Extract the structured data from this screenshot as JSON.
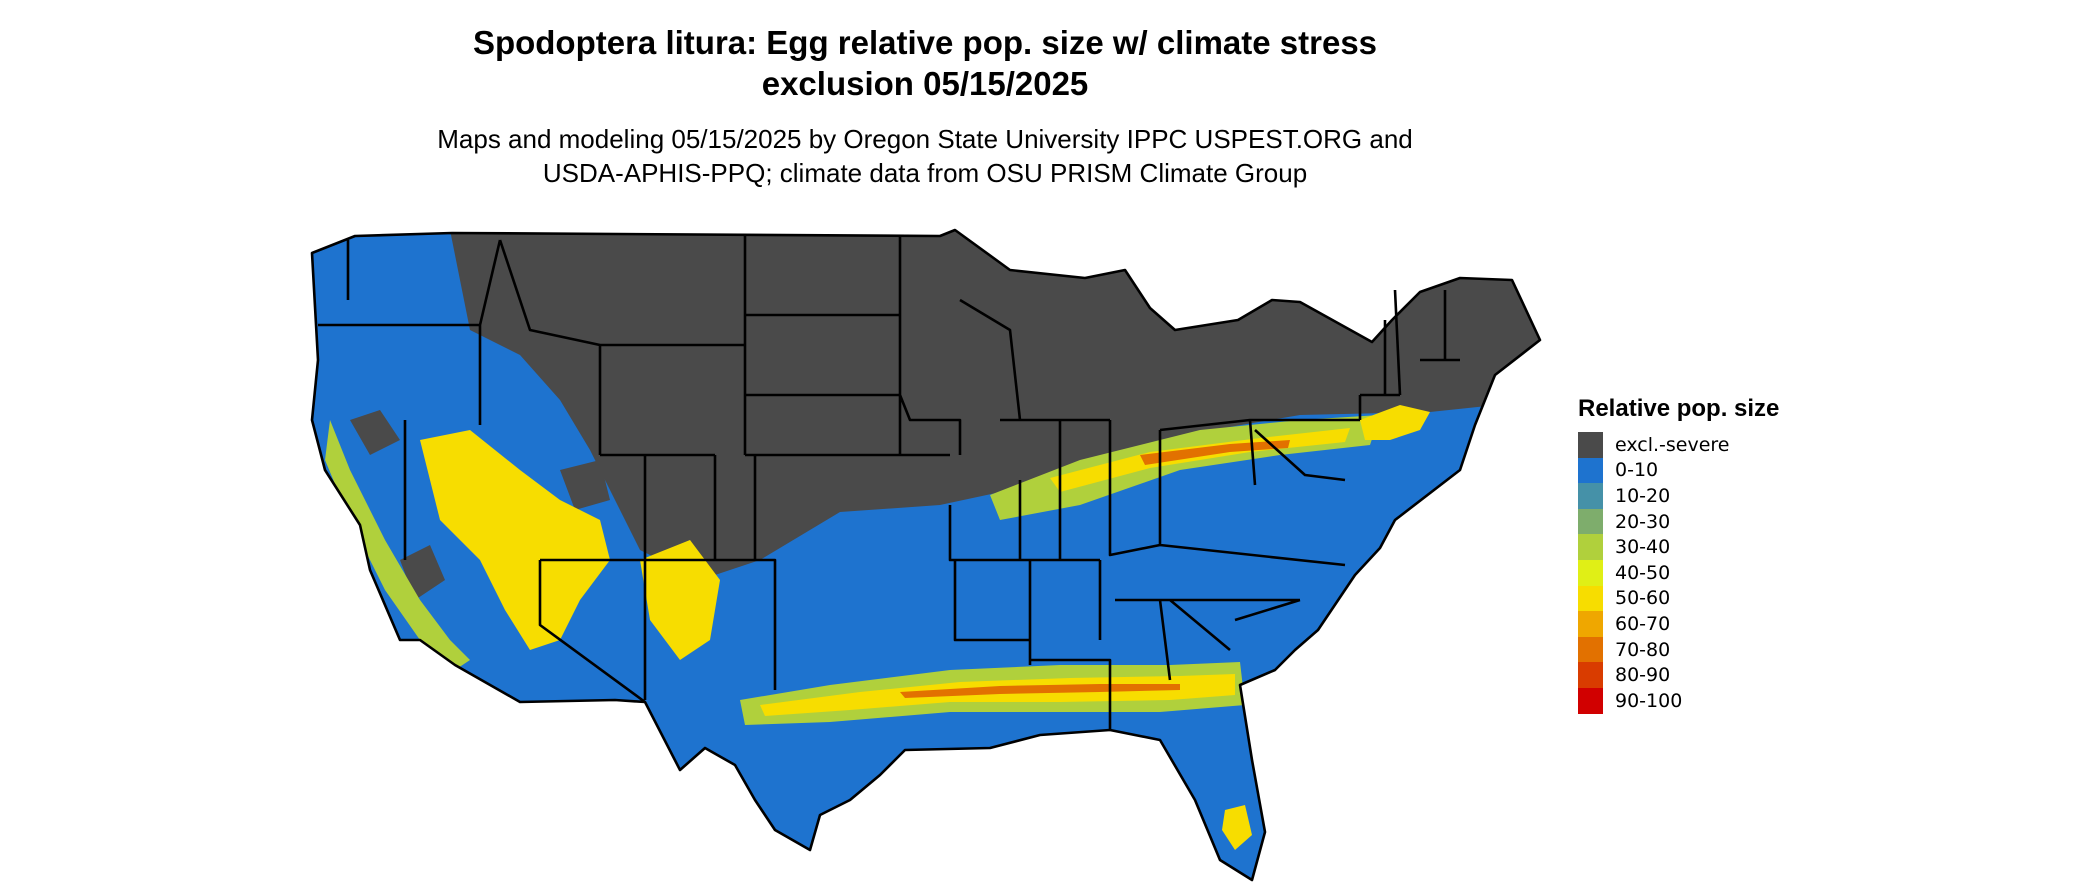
{
  "title_line1": "Spodoptera litura: Egg relative pop. size w/ climate stress",
  "title_line2": "exclusion 05/15/2025",
  "subtitle_line1": "Maps and modeling 05/15/2025 by Oregon State University IPPC USPEST.ORG and",
  "subtitle_line2": "USDA-APHIS-PPQ; climate data from OSU PRISM Climate Group",
  "legend": {
    "title": "Relative pop. size",
    "items": [
      {
        "label": "excl.-severe",
        "color": "#4a4a4a"
      },
      {
        "label": "0-10",
        "color": "#1e73cf"
      },
      {
        "label": "10-20",
        "color": "#4591a8"
      },
      {
        "label": "20-30",
        "color": "#7ead6c"
      },
      {
        "label": "30-40",
        "color": "#b0d03c"
      },
      {
        "label": "40-50",
        "color": "#e0ef16"
      },
      {
        "label": "50-60",
        "color": "#f7dd00"
      },
      {
        "label": "60-70",
        "color": "#efa700"
      },
      {
        "label": "70-80",
        "color": "#e27100"
      },
      {
        "label": "80-90",
        "color": "#d93c00"
      },
      {
        "label": "90-100",
        "color": "#d10000"
      }
    ]
  },
  "map_colors": {
    "excluded": "#4a4a4a",
    "low": "#1e73cf",
    "mid": "#b0d03c",
    "high": "#f7dd00",
    "peak": "#e27100",
    "border": "#000000"
  }
}
